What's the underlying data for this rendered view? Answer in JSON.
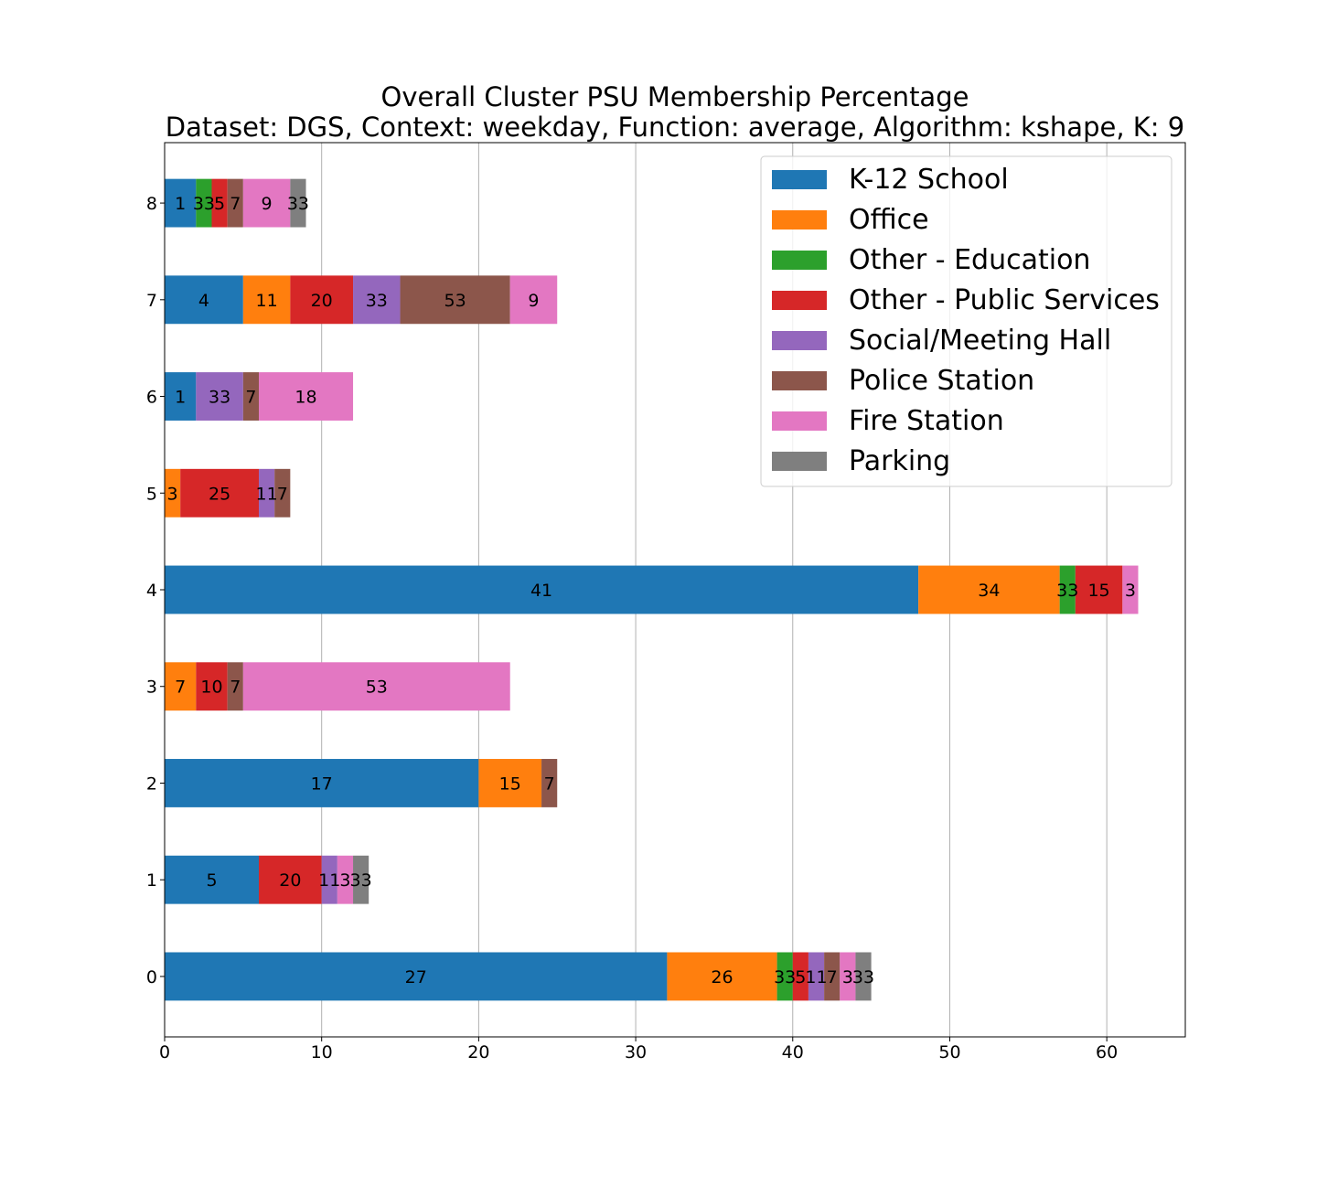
{
  "chart_data": {
    "type": "bar",
    "orientation": "horizontal",
    "stacked": true,
    "title": "Overall Cluster  PSU Membership Percentage",
    "subtitle": "Dataset: DGS, Context: weekday, Function: average, Algorithm: kshape, K: 9",
    "xlabel": "",
    "ylabel": "",
    "xlim": [
      0,
      65
    ],
    "x_ticks": [
      "0",
      "10",
      "20",
      "30",
      "40",
      "50",
      "60"
    ],
    "grid": "vertical",
    "legend_position": "top-right",
    "categories": [
      "0",
      "1",
      "2",
      "3",
      "4",
      "5",
      "6",
      "7",
      "8"
    ],
    "series": [
      {
        "name": "K-12 School",
        "color": "#1f77b4",
        "values": [
          32,
          6,
          20,
          0,
          48,
          0,
          2,
          5,
          2
        ],
        "labels": [
          "27",
          "5",
          "17",
          "",
          "41",
          "",
          "1",
          "4",
          "1"
        ]
      },
      {
        "name": "Office",
        "color": "#ff7f0e",
        "values": [
          7,
          0,
          4,
          2,
          9,
          1,
          0,
          3,
          0
        ],
        "labels": [
          "26",
          "",
          "15",
          "7",
          "34",
          "3",
          "",
          "11",
          ""
        ]
      },
      {
        "name": "Other - Education",
        "color": "#2ca02c",
        "values": [
          1,
          0,
          0,
          0,
          1,
          0,
          0,
          0,
          1
        ],
        "labels": [
          "33",
          "",
          "",
          "",
          "33",
          "",
          "",
          "",
          "33"
        ]
      },
      {
        "name": "Other - Public Services",
        "color": "#d62728",
        "values": [
          1,
          4,
          0,
          2,
          3,
          5,
          0,
          4,
          1
        ],
        "labels": [
          "5",
          "20",
          "",
          "10",
          "15",
          "25",
          "",
          "20",
          "5"
        ]
      },
      {
        "name": "Social/Meeting Hall",
        "color": "#9467bd",
        "values": [
          1,
          1,
          0,
          0,
          0,
          1,
          3,
          3,
          0
        ],
        "labels": [
          "11",
          "11",
          "",
          "",
          "",
          "11",
          "33",
          "33",
          ""
        ]
      },
      {
        "name": "Police Station",
        "color": "#8c564b",
        "values": [
          1,
          0,
          1,
          1,
          0,
          1,
          1,
          7,
          1
        ],
        "labels": [
          "7",
          "",
          "7",
          "7",
          "",
          "7",
          "7",
          "53",
          "7"
        ]
      },
      {
        "name": "Fire Station",
        "color": "#e377c2",
        "values": [
          1,
          1,
          0,
          17,
          1,
          0,
          6,
          3,
          3
        ],
        "labels": [
          "3",
          "3",
          "",
          "53",
          "3",
          "",
          "18",
          "9",
          "9"
        ]
      },
      {
        "name": "Parking",
        "color": "#7f7f7f",
        "values": [
          1,
          1,
          0,
          0,
          0,
          0,
          0,
          0,
          1
        ],
        "labels": [
          "33",
          "33",
          "",
          "",
          "",
          "",
          "",
          "",
          "33"
        ]
      }
    ]
  }
}
